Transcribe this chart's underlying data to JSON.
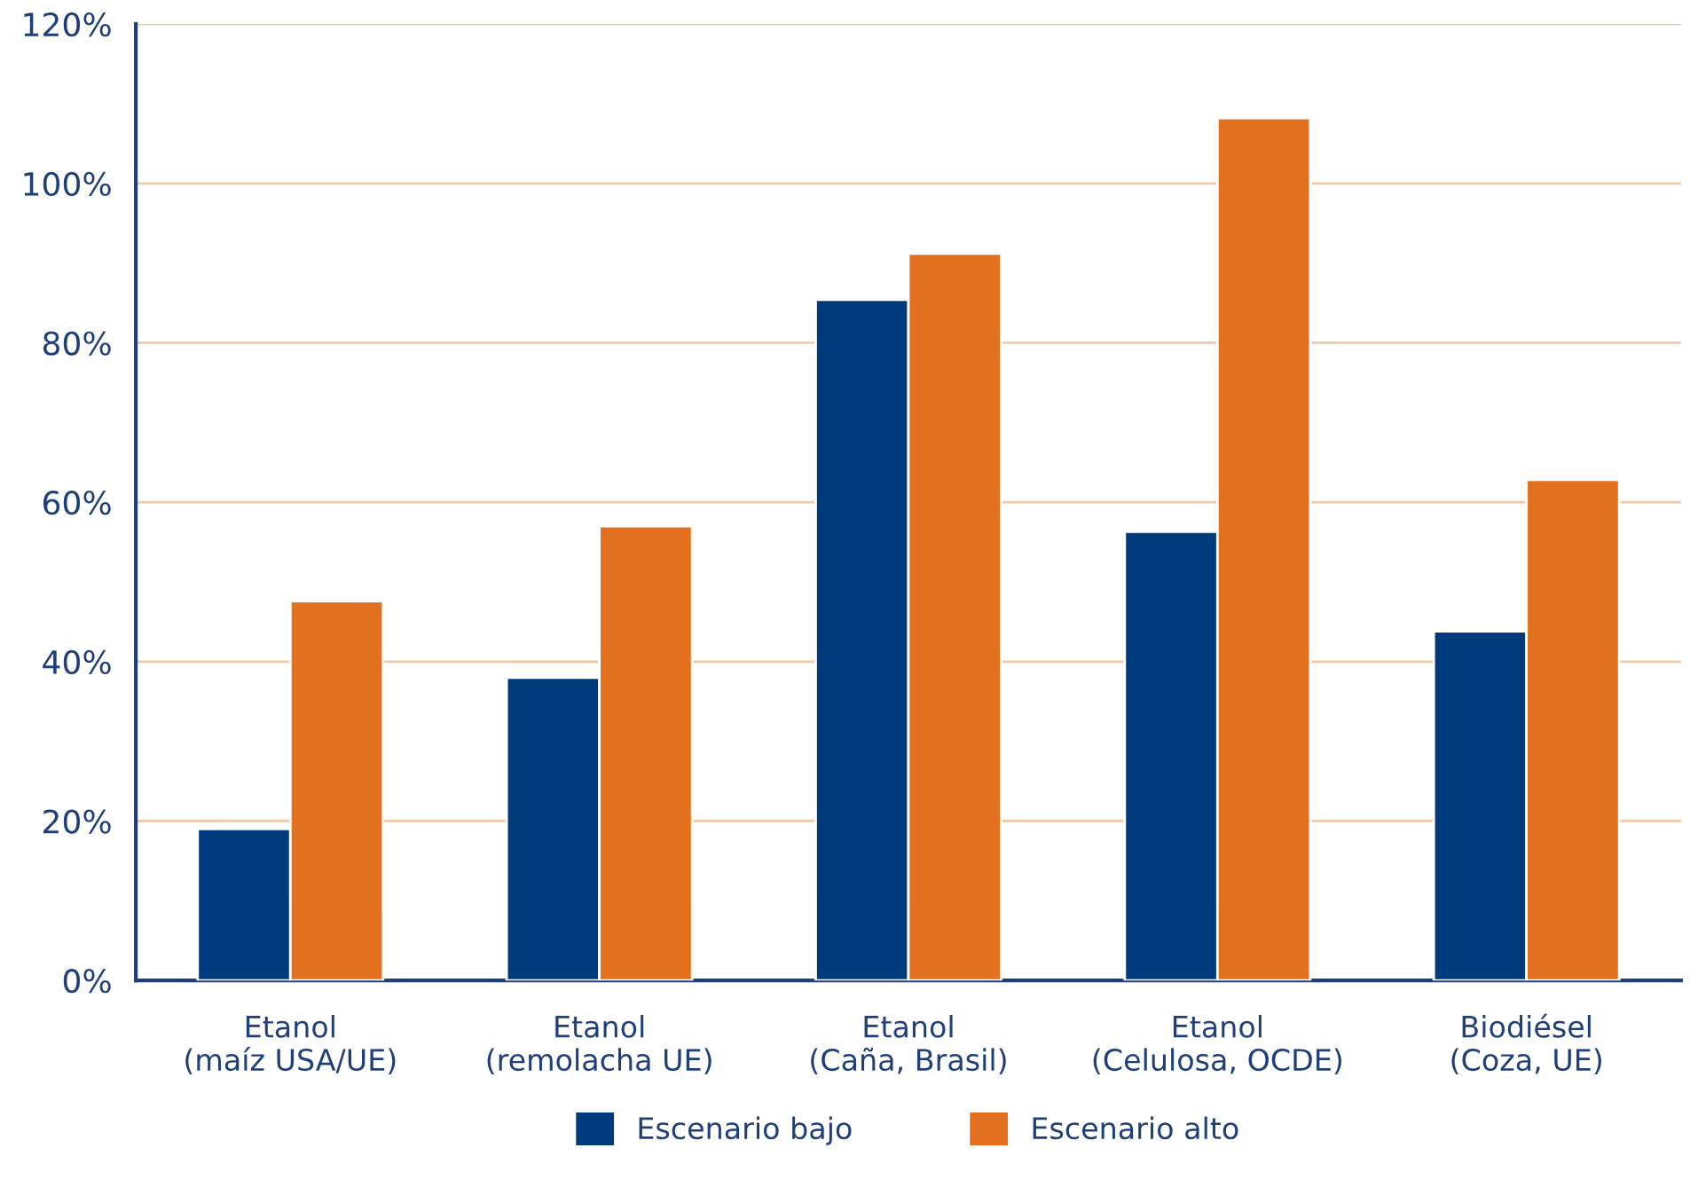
{
  "chart_data": {
    "type": "bar",
    "categories": [
      "Etanol\n(maíz USA/UE)",
      "Etanol\n(remolacha UE)",
      "Etanol\n(Caña, Brasil)",
      "Etanol\n(Celulosa, OCDE)",
      "Biodiésel\n(Coza, UE)"
    ],
    "series": [
      {
        "name": "Escenario bajo",
        "color": "#003c7d",
        "values": [
          19,
          38,
          85.4,
          56.3,
          43.8
        ]
      },
      {
        "name": "Escenario alto",
        "color": "#e3701f",
        "values": [
          47.6,
          57,
          91.2,
          108.2,
          62.8
        ]
      }
    ],
    "ylim": [
      0,
      120
    ],
    "yticks": [
      {
        "value": 0,
        "label": "0%"
      },
      {
        "value": 20,
        "label": "20%"
      },
      {
        "value": 40,
        "label": "40%"
      },
      {
        "value": 60,
        "label": "60%"
      },
      {
        "value": 80,
        "label": "80%"
      },
      {
        "value": 100,
        "label": "100%"
      },
      {
        "value": 120,
        "label": "120%"
      }
    ],
    "grid": "y",
    "legend": "bottom"
  }
}
